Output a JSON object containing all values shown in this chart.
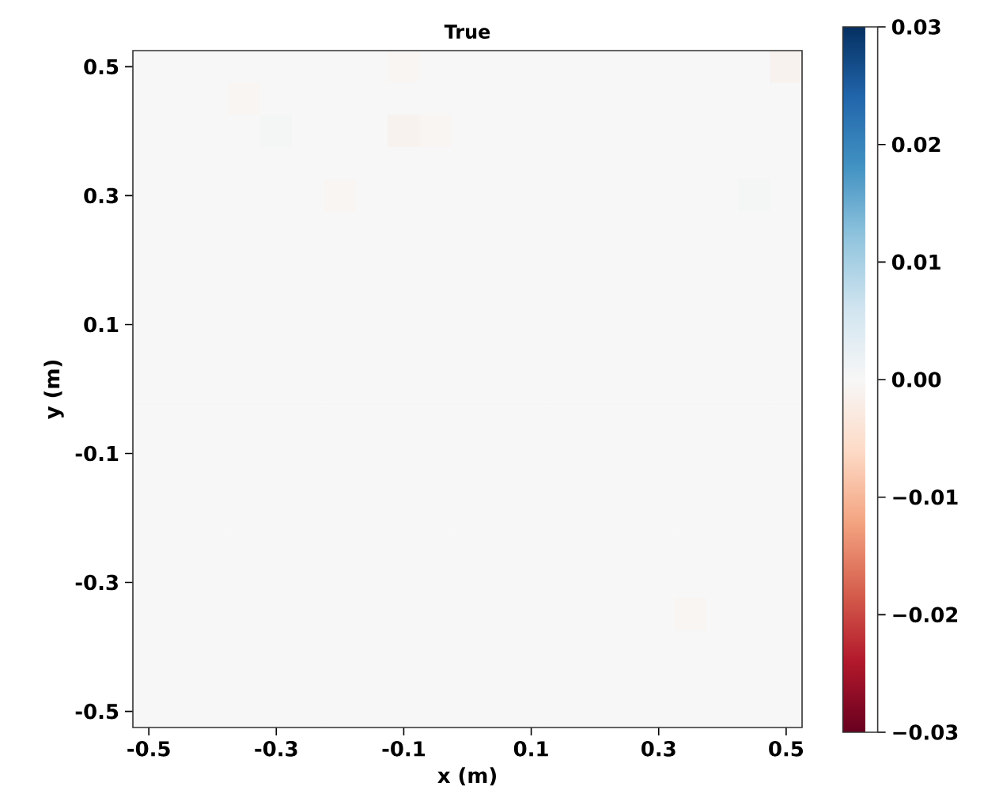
{
  "chart_data": {
    "type": "heatmap",
    "title": "True",
    "xlabel": "x (m)",
    "ylabel": "y (m)",
    "categories": [
      "-0.5",
      null,
      null,
      null,
      "-0.3",
      null,
      null,
      null,
      "-0.1",
      null,
      null,
      null,
      "0.1",
      null,
      null,
      null,
      "0.3",
      null,
      null,
      null,
      "0.5"
    ],
    "y_categories": [
      "0.5",
      null,
      null,
      null,
      "0.3",
      null,
      null,
      null,
      "0.1",
      null,
      null,
      null,
      "-0.1",
      null,
      null,
      null,
      "-0.3",
      null,
      null,
      null,
      "-0.5"
    ],
    "clim": [
      -0.03,
      0.03
    ],
    "cticks": [
      {
        "value": -0.03,
        "label": "−0.03"
      },
      {
        "value": -0.02,
        "label": "−0.02"
      },
      {
        "value": -0.01,
        "label": "−0.01"
      },
      {
        "value": 0,
        "label": "0.00"
      },
      0.01,
      0.02,
      0.03
    ],
    "cells": [
      [
        0,
        0,
        0,
        0,
        0,
        0,
        0,
        0,
        -0.0005,
        0,
        0,
        0,
        0,
        0,
        0,
        0,
        0,
        0,
        0,
        0,
        -0.001
      ],
      [
        0,
        0,
        0,
        -0.0005,
        0,
        0,
        0,
        0,
        0,
        0,
        0,
        0,
        0,
        0,
        0,
        0,
        0,
        0,
        0,
        0,
        0
      ],
      [
        0,
        0,
        0,
        0,
        0.0005,
        0,
        0,
        0,
        -0.001,
        -0.0005,
        0,
        0,
        0,
        0,
        0,
        0,
        0,
        0,
        0,
        0,
        0
      ],
      [
        0,
        0,
        0,
        0,
        0,
        0,
        0,
        0,
        0,
        0,
        0,
        0,
        0,
        0,
        0,
        0,
        0,
        0,
        0,
        0,
        0
      ],
      [
        0,
        0,
        0,
        0,
        0,
        0,
        -0.0005,
        0,
        0,
        0,
        0,
        0,
        0,
        0,
        0,
        0,
        0,
        0,
        0,
        0.0005,
        0
      ],
      [
        0,
        0,
        0,
        0,
        0,
        0,
        0,
        0,
        0,
        0,
        0,
        0,
        0,
        0,
        0,
        0,
        0,
        0,
        0,
        0,
        0
      ],
      [
        0,
        0,
        0,
        0,
        0,
        0,
        0,
        0,
        0,
        0,
        0,
        0,
        0,
        0,
        0,
        0,
        0,
        0,
        0,
        0,
        0
      ],
      [
        0,
        0,
        0,
        0,
        0,
        0,
        0,
        0,
        0,
        0,
        0,
        0,
        0,
        0,
        0,
        0,
        0,
        0,
        0,
        0,
        0
      ],
      [
        0,
        0,
        0,
        0,
        0,
        0,
        0,
        0,
        0,
        0,
        0,
        0,
        0,
        0,
        0,
        0,
        0,
        0,
        0,
        0,
        0
      ],
      [
        0,
        0,
        0,
        0,
        0,
        0,
        0,
        0,
        0,
        0,
        0,
        0,
        0,
        0,
        0,
        0,
        0,
        0,
        0,
        0,
        0
      ],
      [
        0,
        0,
        0,
        0,
        0,
        0,
        0,
        0,
        0,
        0,
        0,
        0,
        0,
        0,
        0,
        0,
        0,
        0,
        0,
        0,
        0
      ],
      [
        0,
        0,
        0,
        0,
        0,
        0,
        0,
        0,
        0,
        0,
        0,
        0,
        0,
        0,
        0,
        0,
        0,
        0,
        0,
        0,
        0
      ],
      [
        0,
        0,
        0,
        0,
        0,
        0,
        0,
        0,
        0,
        0,
        0,
        0,
        0,
        0,
        0,
        0,
        0,
        0,
        0,
        0,
        0
      ],
      [
        0,
        0,
        0,
        0,
        0,
        0,
        0,
        0,
        0,
        0,
        0,
        0,
        0,
        0,
        0,
        0,
        0,
        0,
        0,
        0,
        0
      ],
      [
        0,
        0,
        0,
        0,
        0,
        0,
        0,
        0,
        0,
        0,
        0,
        0,
        0,
        0,
        0,
        0,
        0,
        0,
        0,
        0,
        0
      ],
      [
        0,
        0,
        0,
        0,
        0,
        0,
        0,
        0,
        0,
        0,
        0,
        0,
        0,
        0,
        0,
        0,
        0,
        0,
        0,
        0,
        0
      ],
      [
        0,
        0,
        0,
        0,
        0,
        0,
        0,
        0,
        0,
        0,
        0,
        0,
        0,
        0,
        0,
        0,
        0,
        0,
        0,
        0,
        0
      ],
      [
        0,
        0,
        0,
        0,
        0,
        0,
        0,
        0,
        0,
        0,
        0,
        0,
        0,
        0,
        0,
        0,
        0,
        -0.0005,
        0,
        0,
        0
      ],
      [
        0,
        0,
        0,
        0,
        0,
        0,
        0,
        0,
        0,
        0,
        0,
        0,
        0,
        0,
        0,
        0,
        0,
        0,
        0,
        0,
        0
      ],
      [
        0,
        0,
        0,
        0,
        0,
        0,
        0,
        0,
        0,
        0,
        0,
        0,
        0,
        0,
        0,
        0,
        0,
        0,
        0,
        0,
        0
      ],
      [
        0,
        0,
        0,
        0,
        0,
        0,
        0,
        0,
        0,
        0,
        0,
        0,
        0,
        0,
        0,
        0,
        0,
        0,
        0,
        0,
        0
      ]
    ]
  }
}
